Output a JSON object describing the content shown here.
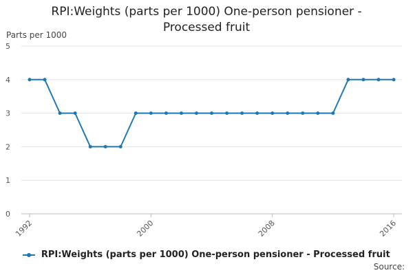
{
  "chart_data": {
    "type": "line",
    "title": "RPI:Weights (parts per 1000) One-person pensioner - Processed fruit",
    "title_lines": [
      "RPI:Weights (parts per 1000) One-person pensioner -",
      "Processed fruit"
    ],
    "ylabel": "Parts per 1000",
    "xlabel": "",
    "ylim": [
      0,
      5
    ],
    "yticks": [
      "0",
      "1",
      "2",
      "3",
      "4",
      "5"
    ],
    "xlim": [
      1992,
      2016
    ],
    "xticks": [
      "1992",
      "2000",
      "2008",
      "2016"
    ],
    "grid": true,
    "legend_position": "bottom",
    "series": [
      {
        "name": "RPI:Weights (parts per 1000) One-person pensioner - Processed fruit",
        "color": "#1f77b4",
        "x": [
          1992,
          1993,
          1994,
          1995,
          1996,
          1997,
          1998,
          1999,
          2000,
          2001,
          2002,
          2003,
          2004,
          2005,
          2006,
          2007,
          2008,
          2009,
          2010,
          2011,
          2012,
          2013,
          2014,
          2015,
          2016
        ],
        "values": [
          4,
          4,
          3,
          3,
          2,
          2,
          2,
          3,
          3,
          3,
          3,
          3,
          3,
          3,
          3,
          3,
          3,
          3,
          3,
          3,
          3,
          4,
          4,
          4,
          4
        ]
      }
    ]
  },
  "legend": {
    "label": "RPI:Weights (parts per 1000) One-person pensioner - Processed fruit"
  },
  "source_label": "Source:"
}
